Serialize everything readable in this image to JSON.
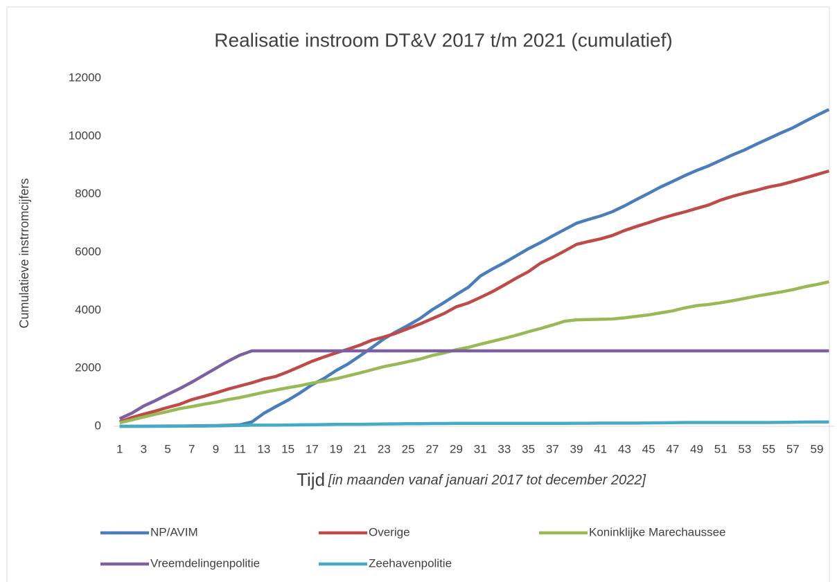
{
  "chart_data": {
    "type": "line",
    "title": "Realisatie instroom DT&V  2017 t/m 2021 (cumulatief)",
    "y_label": "Cumulatieve instrromcijfers",
    "x_label": "Tijd",
    "x_label_detail": "[in maanden vanaf januari 2017 tot december 2022]",
    "categories": [
      1,
      null,
      3,
      null,
      5,
      null,
      7,
      null,
      9,
      null,
      11,
      null,
      13,
      null,
      15,
      null,
      17,
      null,
      19,
      null,
      21,
      null,
      23,
      null,
      25,
      null,
      27,
      null,
      29,
      null,
      31,
      null,
      33,
      null,
      35,
      null,
      37,
      null,
      39,
      null,
      41,
      null,
      43,
      null,
      45,
      null,
      47,
      null,
      49,
      null,
      51,
      null,
      53,
      null,
      55,
      null,
      57,
      null,
      59,
      null
    ],
    "ylim": [
      0,
      12000
    ],
    "yticks": [
      0,
      2000,
      4000,
      6000,
      8000,
      10000,
      12000
    ],
    "grid": false,
    "legend": "bottom",
    "series": [
      {
        "name": "NP/AVIM",
        "color": "#4a7ebb",
        "values": [
          0,
          0,
          0,
          5,
          8,
          10,
          15,
          20,
          25,
          35,
          50,
          150,
          450,
          680,
          900,
          1150,
          1430,
          1650,
          1920,
          2150,
          2430,
          2720,
          3020,
          3260,
          3480,
          3720,
          4020,
          4270,
          4540,
          4790,
          5180,
          5420,
          5640,
          5880,
          6120,
          6330,
          6560,
          6780,
          7000,
          7130,
          7250,
          7400,
          7600,
          7820,
          8030,
          8250,
          8440,
          8640,
          8820,
          8980,
          9170,
          9360,
          9530,
          9730,
          9920,
          10110,
          10290,
          10510,
          10720,
          10920
        ]
      },
      {
        "name": "Overige",
        "color": "#be4b48",
        "values": [
          150,
          300,
          420,
          530,
          650,
          760,
          920,
          1030,
          1150,
          1280,
          1390,
          1500,
          1630,
          1720,
          1880,
          2060,
          2240,
          2390,
          2530,
          2660,
          2800,
          2970,
          3080,
          3210,
          3370,
          3530,
          3710,
          3890,
          4120,
          4250,
          4440,
          4640,
          4870,
          5110,
          5330,
          5620,
          5820,
          6040,
          6270,
          6370,
          6460,
          6580,
          6750,
          6890,
          7020,
          7160,
          7280,
          7390,
          7510,
          7630,
          7800,
          7930,
          8040,
          8140,
          8250,
          8330,
          8440,
          8560,
          8680,
          8800
        ]
      },
      {
        "name": "Koninklijke Marechaussee",
        "color": "#98b954",
        "values": [
          120,
          220,
          320,
          420,
          510,
          610,
          680,
          760,
          830,
          920,
          990,
          1080,
          1170,
          1250,
          1330,
          1400,
          1490,
          1560,
          1640,
          1740,
          1840,
          1950,
          2060,
          2140,
          2230,
          2320,
          2440,
          2530,
          2640,
          2720,
          2830,
          2930,
          3030,
          3140,
          3260,
          3370,
          3490,
          3620,
          3670,
          3680,
          3690,
          3700,
          3740,
          3790,
          3840,
          3910,
          3980,
          4080,
          4160,
          4200,
          4260,
          4330,
          4410,
          4490,
          4560,
          4630,
          4710,
          4810,
          4890,
          4980
        ]
      },
      {
        "name": "Vreemdelingenpolitie",
        "color": "#7d60a0",
        "values": [
          260,
          450,
          700,
          890,
          1100,
          1300,
          1520,
          1760,
          2000,
          2240,
          2450,
          2600,
          2600,
          2600,
          2600,
          2600,
          2600,
          2600,
          2600,
          2600,
          2600,
          2600,
          2600,
          2600,
          2600,
          2600,
          2600,
          2600,
          2600,
          2600,
          2600,
          2600,
          2600,
          2600,
          2600,
          2600,
          2600,
          2600,
          2600,
          2600,
          2600,
          2600,
          2600,
          2600,
          2600,
          2600,
          2600,
          2600,
          2600,
          2600,
          2600,
          2600,
          2600,
          2600,
          2600,
          2600,
          2600,
          2600,
          2600,
          2600
        ]
      },
      {
        "name": "Zeehavenpolitie",
        "color": "#46aac5",
        "values": [
          0,
          0,
          0,
          0,
          0,
          5,
          8,
          10,
          15,
          20,
          30,
          40,
          40,
          40,
          45,
          50,
          55,
          60,
          70,
          70,
          70,
          75,
          80,
          85,
          90,
          90,
          95,
          95,
          100,
          100,
          100,
          100,
          100,
          100,
          100,
          100,
          100,
          100,
          105,
          105,
          110,
          110,
          110,
          110,
          115,
          120,
          125,
          130,
          130,
          130,
          130,
          130,
          130,
          130,
          130,
          135,
          140,
          145,
          150,
          150
        ]
      }
    ]
  }
}
